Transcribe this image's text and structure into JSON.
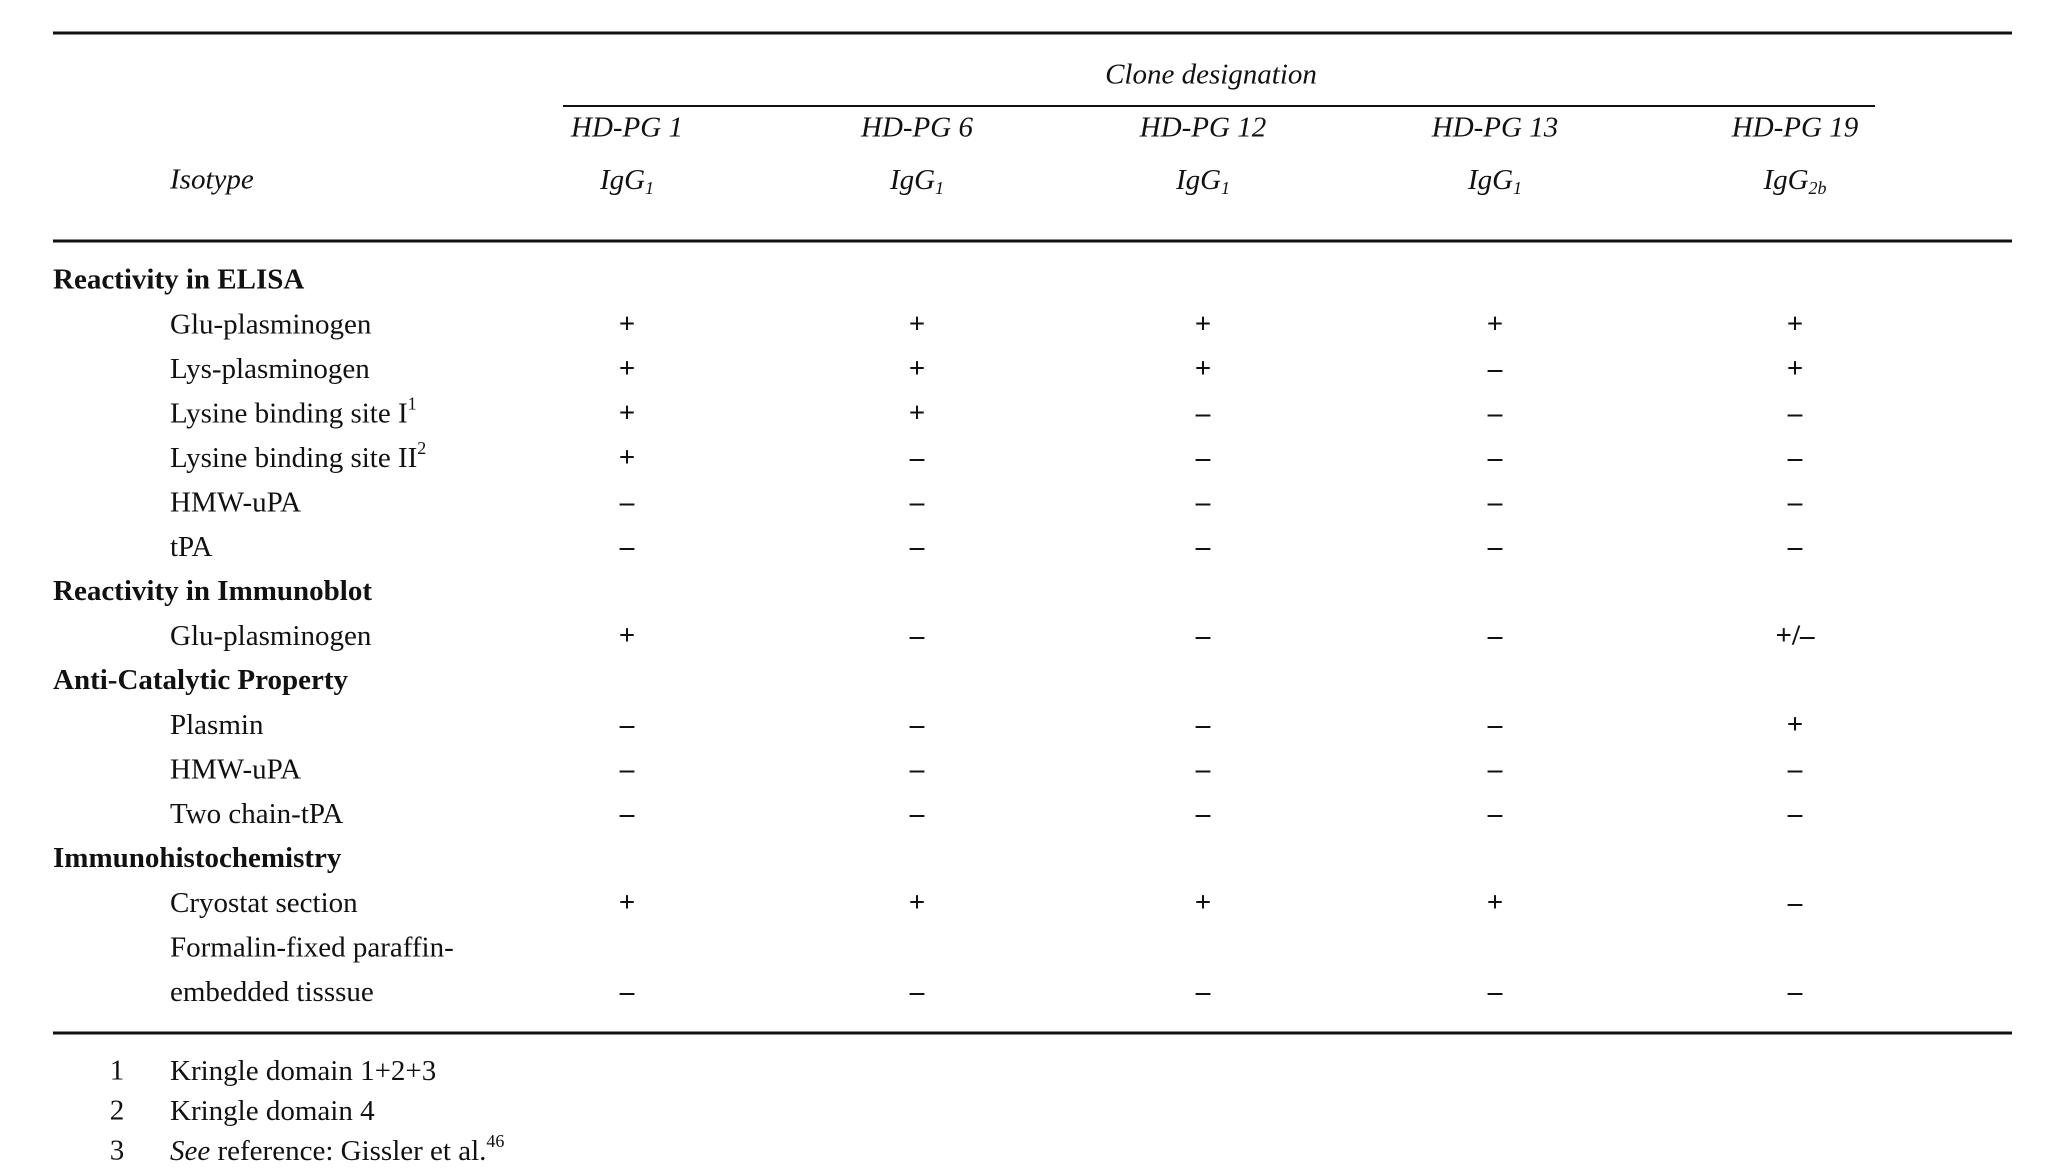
{
  "header": {
    "clone_designation": "Clone designation",
    "isotype_label": "Isotype",
    "clones": [
      {
        "name": "HD-PG 1",
        "isotype": "IgG",
        "isotype_sub": "1"
      },
      {
        "name": "HD-PG 6",
        "isotype": "IgG",
        "isotype_sub": "1"
      },
      {
        "name": "HD-PG 12",
        "isotype": "IgG",
        "isotype_sub": "1"
      },
      {
        "name": "HD-PG 13",
        "isotype": "IgG",
        "isotype_sub": "1"
      },
      {
        "name": "HD-PG 19",
        "isotype": "IgG",
        "isotype_sub": "2b"
      }
    ]
  },
  "sections": [
    {
      "title": "Reactivity in ELISA",
      "rows": [
        {
          "label": [
            "Glu-plasminogen"
          ],
          "values": [
            "+",
            "+",
            "+",
            "+",
            "+"
          ]
        },
        {
          "label": [
            "Lys-plasminogen"
          ],
          "values": [
            "+",
            "+",
            "+",
            "–",
            "+"
          ]
        },
        {
          "label": [
            "Lysine binding site I"
          ],
          "note": "1",
          "values": [
            "+",
            "+",
            "–",
            "–",
            "–"
          ]
        },
        {
          "label": [
            "Lysine binding site II"
          ],
          "note": "2",
          "values": [
            "+",
            "–",
            "–",
            "–",
            "–"
          ]
        },
        {
          "label": [
            "HMW-uPA"
          ],
          "values": [
            "–",
            "–",
            "–",
            "–",
            "–"
          ]
        },
        {
          "label": [
            "tPA"
          ],
          "values": [
            "–",
            "–",
            "–",
            "–",
            "–"
          ]
        }
      ]
    },
    {
      "title": "Reactivity in Immunoblot",
      "rows": [
        {
          "label": [
            "Glu-plasminogen"
          ],
          "values": [
            "+",
            "–",
            "–",
            "–",
            "+/–"
          ]
        }
      ]
    },
    {
      "title": "Anti-Catalytic Property",
      "rows": [
        {
          "label": [
            "Plasmin"
          ],
          "values": [
            "–",
            "–",
            "–",
            "–",
            "+"
          ]
        },
        {
          "label": [
            "HMW-uPA"
          ],
          "values": [
            "–",
            "–",
            "–",
            "–",
            "–"
          ]
        },
        {
          "label": [
            "Two chain-tPA"
          ],
          "values": [
            "–",
            "–",
            "–",
            "–",
            "–"
          ]
        }
      ]
    },
    {
      "title": "Immunohistochemistry",
      "rows": [
        {
          "label": [
            "Cryostat section"
          ],
          "values": [
            "+",
            "+",
            "+",
            "+",
            "–"
          ]
        },
        {
          "label": [
            "Formalin-fixed paraffin-",
            "embedded tisssue"
          ],
          "values": [
            "–",
            "–",
            "–",
            "–",
            "–"
          ]
        }
      ]
    }
  ],
  "footnotes": [
    {
      "mark": "1",
      "text": "Kringle domain 1+2+3"
    },
    {
      "mark": "2",
      "text": "Kringle domain 4"
    },
    {
      "mark": "3",
      "prefix": "See",
      "text": " reference: Gissler et al.",
      "sup": "46"
    }
  ]
}
